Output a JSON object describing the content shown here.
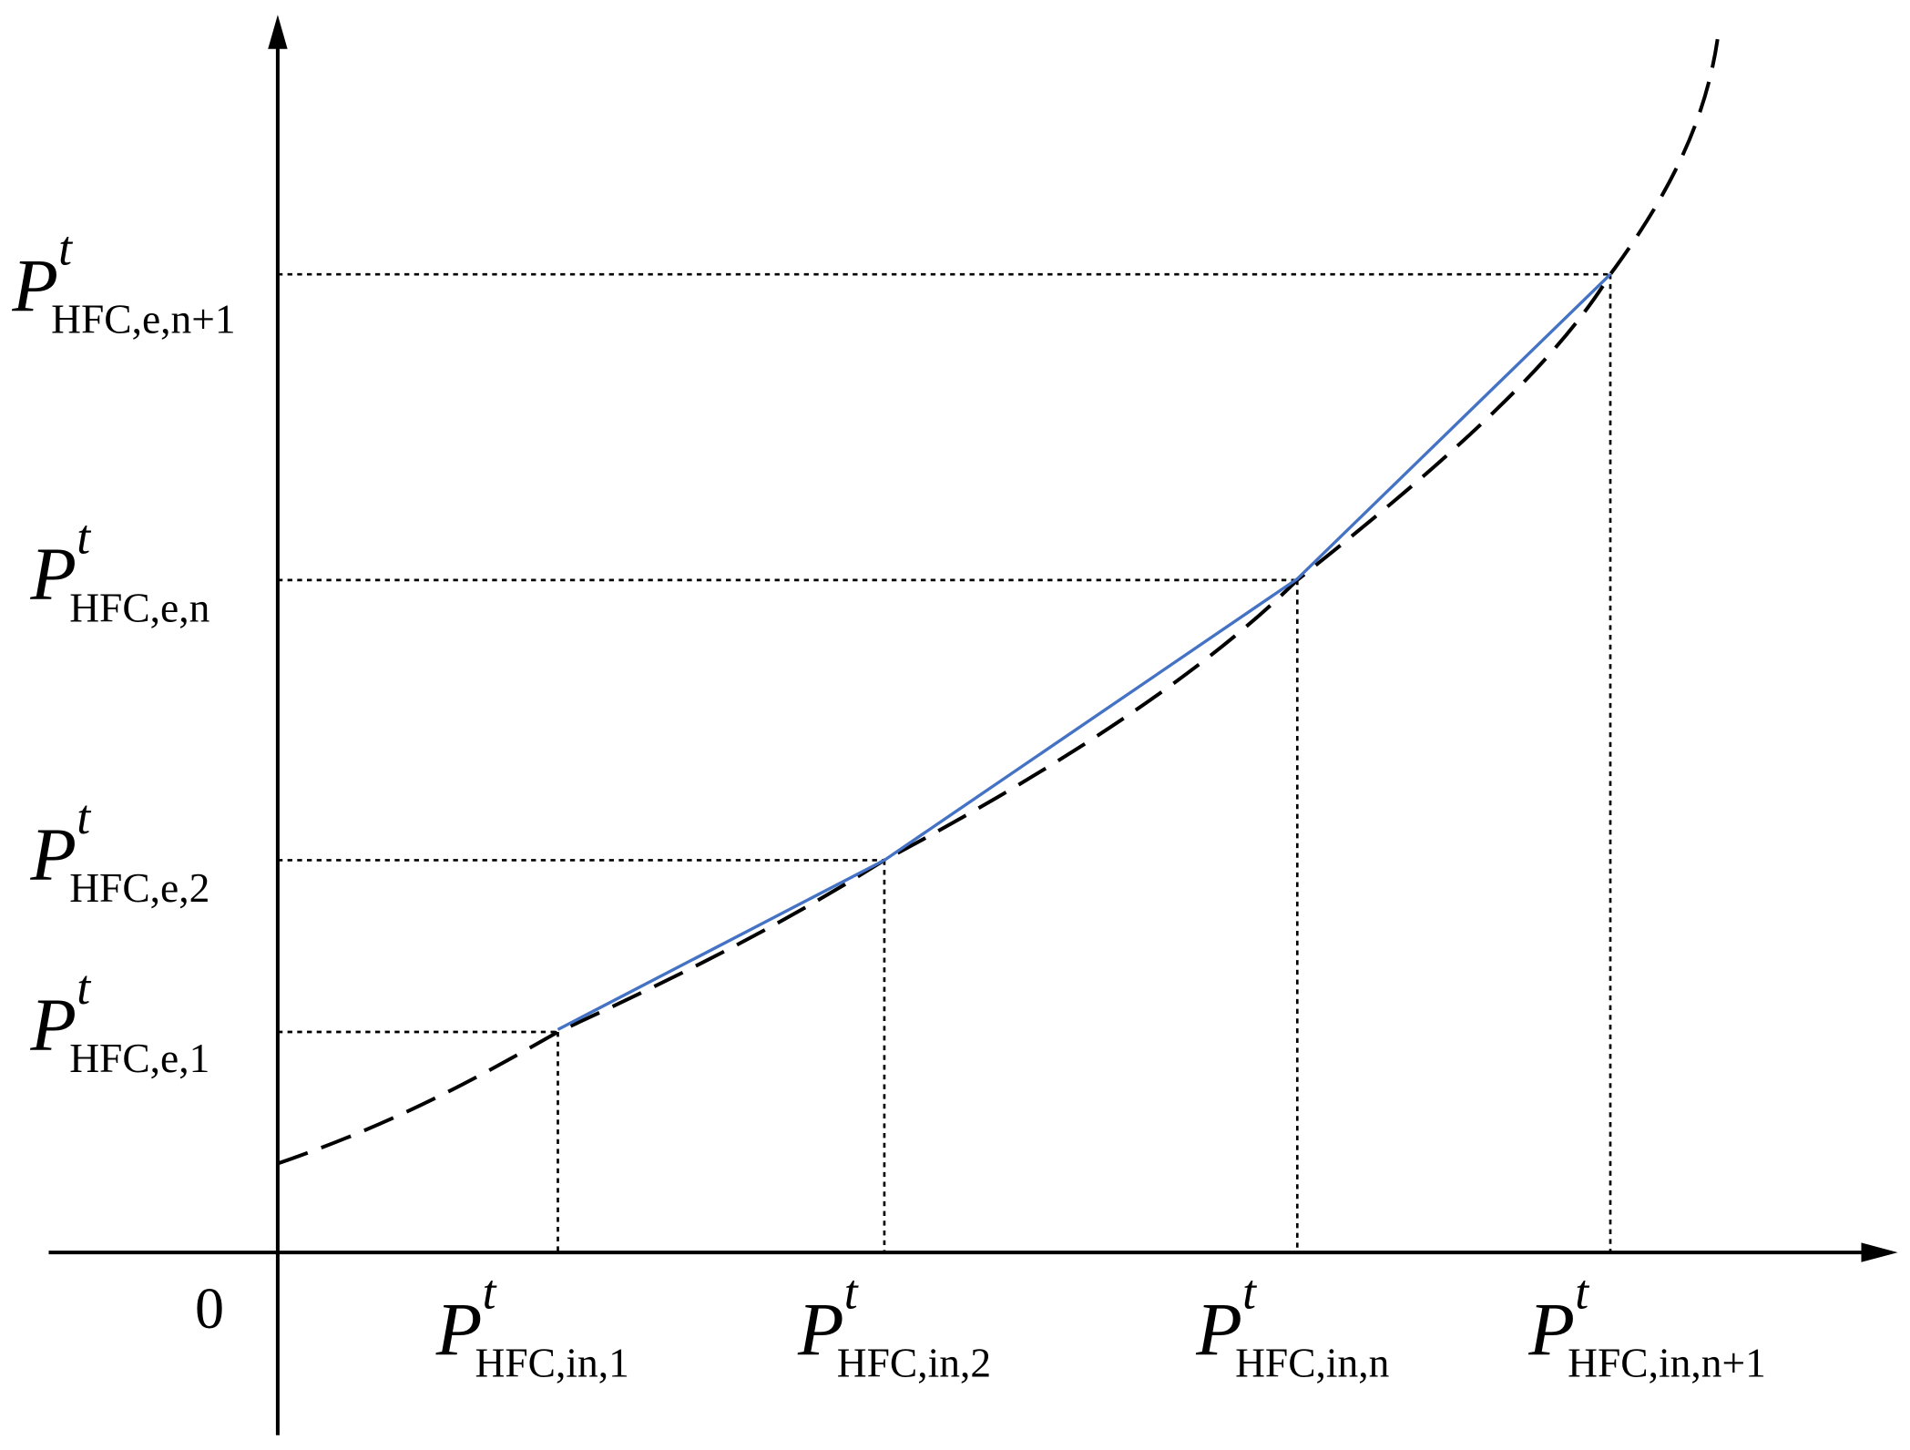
{
  "origin": "0",
  "y_labels": [
    {
      "symbol": "P",
      "sup": "t",
      "sub": "HFC,e,1"
    },
    {
      "symbol": "P",
      "sup": "t",
      "sub": "HFC,e,2"
    },
    {
      "symbol": "P",
      "sup": "t",
      "sub": "HFC,e,n"
    },
    {
      "symbol": "P",
      "sup": "t",
      "sub": "HFC,e,n+1"
    }
  ],
  "x_labels": [
    {
      "symbol": "P",
      "sup": "t",
      "sub": "HFC,in,1"
    },
    {
      "symbol": "P",
      "sup": "t",
      "sub": "HFC,in,2"
    },
    {
      "symbol": "P",
      "sup": "t",
      "sub": "HFC,in,n"
    },
    {
      "symbol": "P",
      "sup": "t",
      "sub": "HFC,in,n+1"
    }
  ]
}
